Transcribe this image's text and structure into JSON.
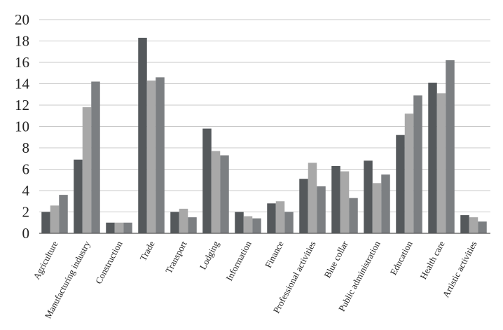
{
  "chart_data": {
    "type": "bar",
    "title": "",
    "xlabel": "",
    "ylabel": "",
    "ylim": [
      0,
      20
    ],
    "yticks": [
      0,
      2,
      4,
      6,
      8,
      10,
      12,
      14,
      16,
      18,
      20
    ],
    "grid": true,
    "legend": "none",
    "categories": [
      "Agriculture",
      "Manufacturing industry",
      "Construction",
      "Trade",
      "Transport",
      "Lodging",
      "Information",
      "Finance",
      "Professional activities",
      "Blue collar",
      "Public administration",
      "Education",
      "Health care",
      "Artistic activities"
    ],
    "series": [
      {
        "color": "#55595c",
        "values": [
          2.0,
          6.9,
          1.0,
          18.3,
          2.0,
          9.8,
          2.0,
          2.8,
          5.1,
          6.3,
          6.8,
          9.2,
          14.1,
          1.7
        ]
      },
      {
        "color": "#a8a8a8",
        "values": [
          2.6,
          11.8,
          1.0,
          14.3,
          2.3,
          7.7,
          1.6,
          3.0,
          6.6,
          5.8,
          4.7,
          11.2,
          13.1,
          1.5
        ]
      },
      {
        "color": "#7c7f82",
        "values": [
          3.6,
          14.2,
          1.0,
          14.6,
          1.5,
          7.3,
          1.4,
          2.0,
          4.4,
          3.3,
          5.5,
          12.9,
          16.2,
          1.1
        ]
      }
    ]
  }
}
